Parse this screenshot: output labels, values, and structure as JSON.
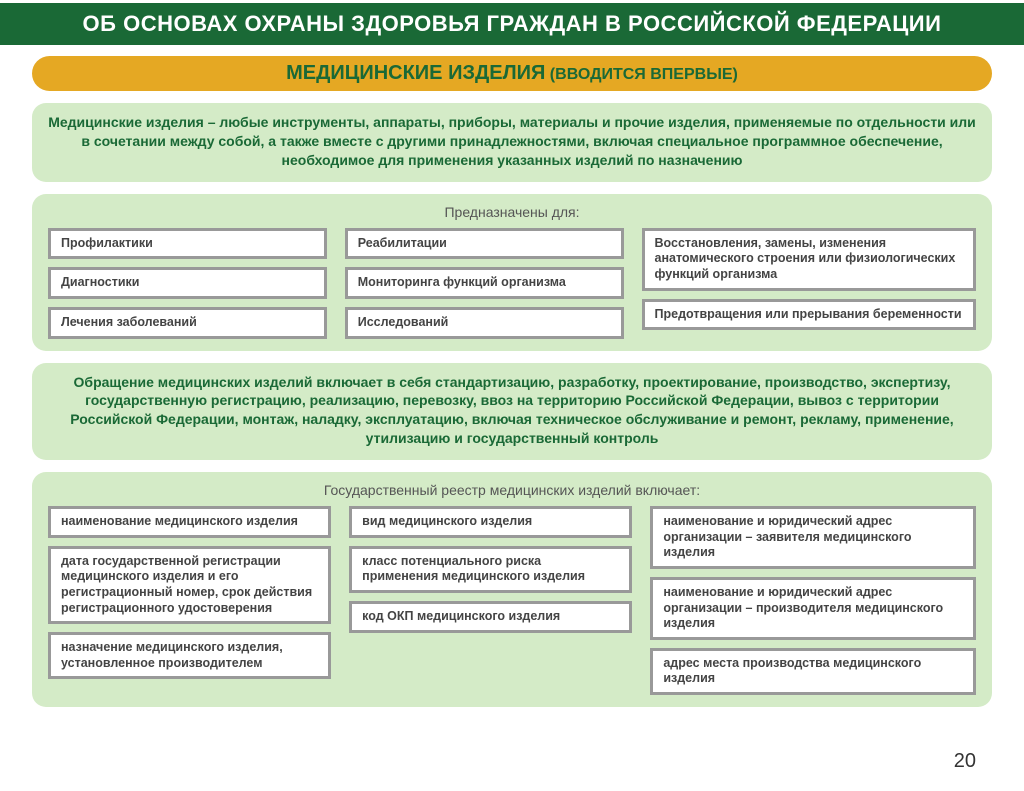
{
  "colors": {
    "header_bg": "#1a6936",
    "header_text": "#ffffff",
    "subbar_bg": "#e5a823",
    "subbar_text": "#1a6936",
    "panel_bg": "#d4ebc7",
    "desc_text": "#1a6936",
    "section_title": "#555555",
    "cell_bg": "#ffffff",
    "cell_border": "#999999",
    "cell_text": "#444444"
  },
  "type": "infographic",
  "header": {
    "title": "ОБ ОСНОВАХ ОХРАНЫ ЗДОРОВЬЯ ГРАЖДАН В РОССИЙСКОЙ ФЕДЕРАЦИИ"
  },
  "subheader": {
    "main": "МЕДИЦИНСКИЕ ИЗДЕЛИЯ",
    "paren": " (ВВОДИТСЯ ВПЕРВЫЕ)"
  },
  "definition_panel": {
    "text": "Медицинские изделия – любые инструменты, аппараты, приборы, материалы и прочие изделия, применяемые по отдельности или в сочетании между собой, а также вместе с другими принадлежностями, включая специальное программное обеспечение, необходимое для применения указанных изделий по назначению"
  },
  "purpose_panel": {
    "title": "Предназначены для:",
    "col1": [
      "Профилактики",
      "Диагностики",
      "Лечения заболеваний"
    ],
    "col2": [
      "Реабилитации",
      "Мониторинга функций организма",
      "Исследований"
    ],
    "col3": [
      "Восстановления, замены, изменения анатомического строения или физиологических функций организма",
      "Предотвращения или прерывания беременности"
    ]
  },
  "circulation_panel": {
    "text": "Обращение медицинских изделий включает в себя стандартизацию, разработку, проектирование, производство, экспертизу, государственную регистрацию, реализацию, перевозку, ввоз на территорию Российской Федерации, вывоз с территории Российской Федерации, монтаж, наладку, эксплуатацию, включая техническое обслуживание и ремонт, рекламу, применение, утилизацию и государственный контроль"
  },
  "registry_panel": {
    "title": "Государственный реестр медицинских изделий включает:",
    "col1": [
      "наименование медицинского изделия",
      "дата государственной регистрации медицинского изделия и его регистрационный номер, срок действия регистрационного удостоверения",
      "назначение медицинского изделия, установленное производителем"
    ],
    "col2": [
      "вид медицинского изделия",
      "класс потенциального риска применения медицинского изделия",
      "код ОКП медицинского изделия"
    ],
    "col3": [
      "наименование и юридический адрес организации – заявителя медицинского изделия",
      "наименование и юридический адрес организации – производителя медицинского изделия",
      "адрес места производства медицинского изделия"
    ]
  },
  "page_number": "20"
}
